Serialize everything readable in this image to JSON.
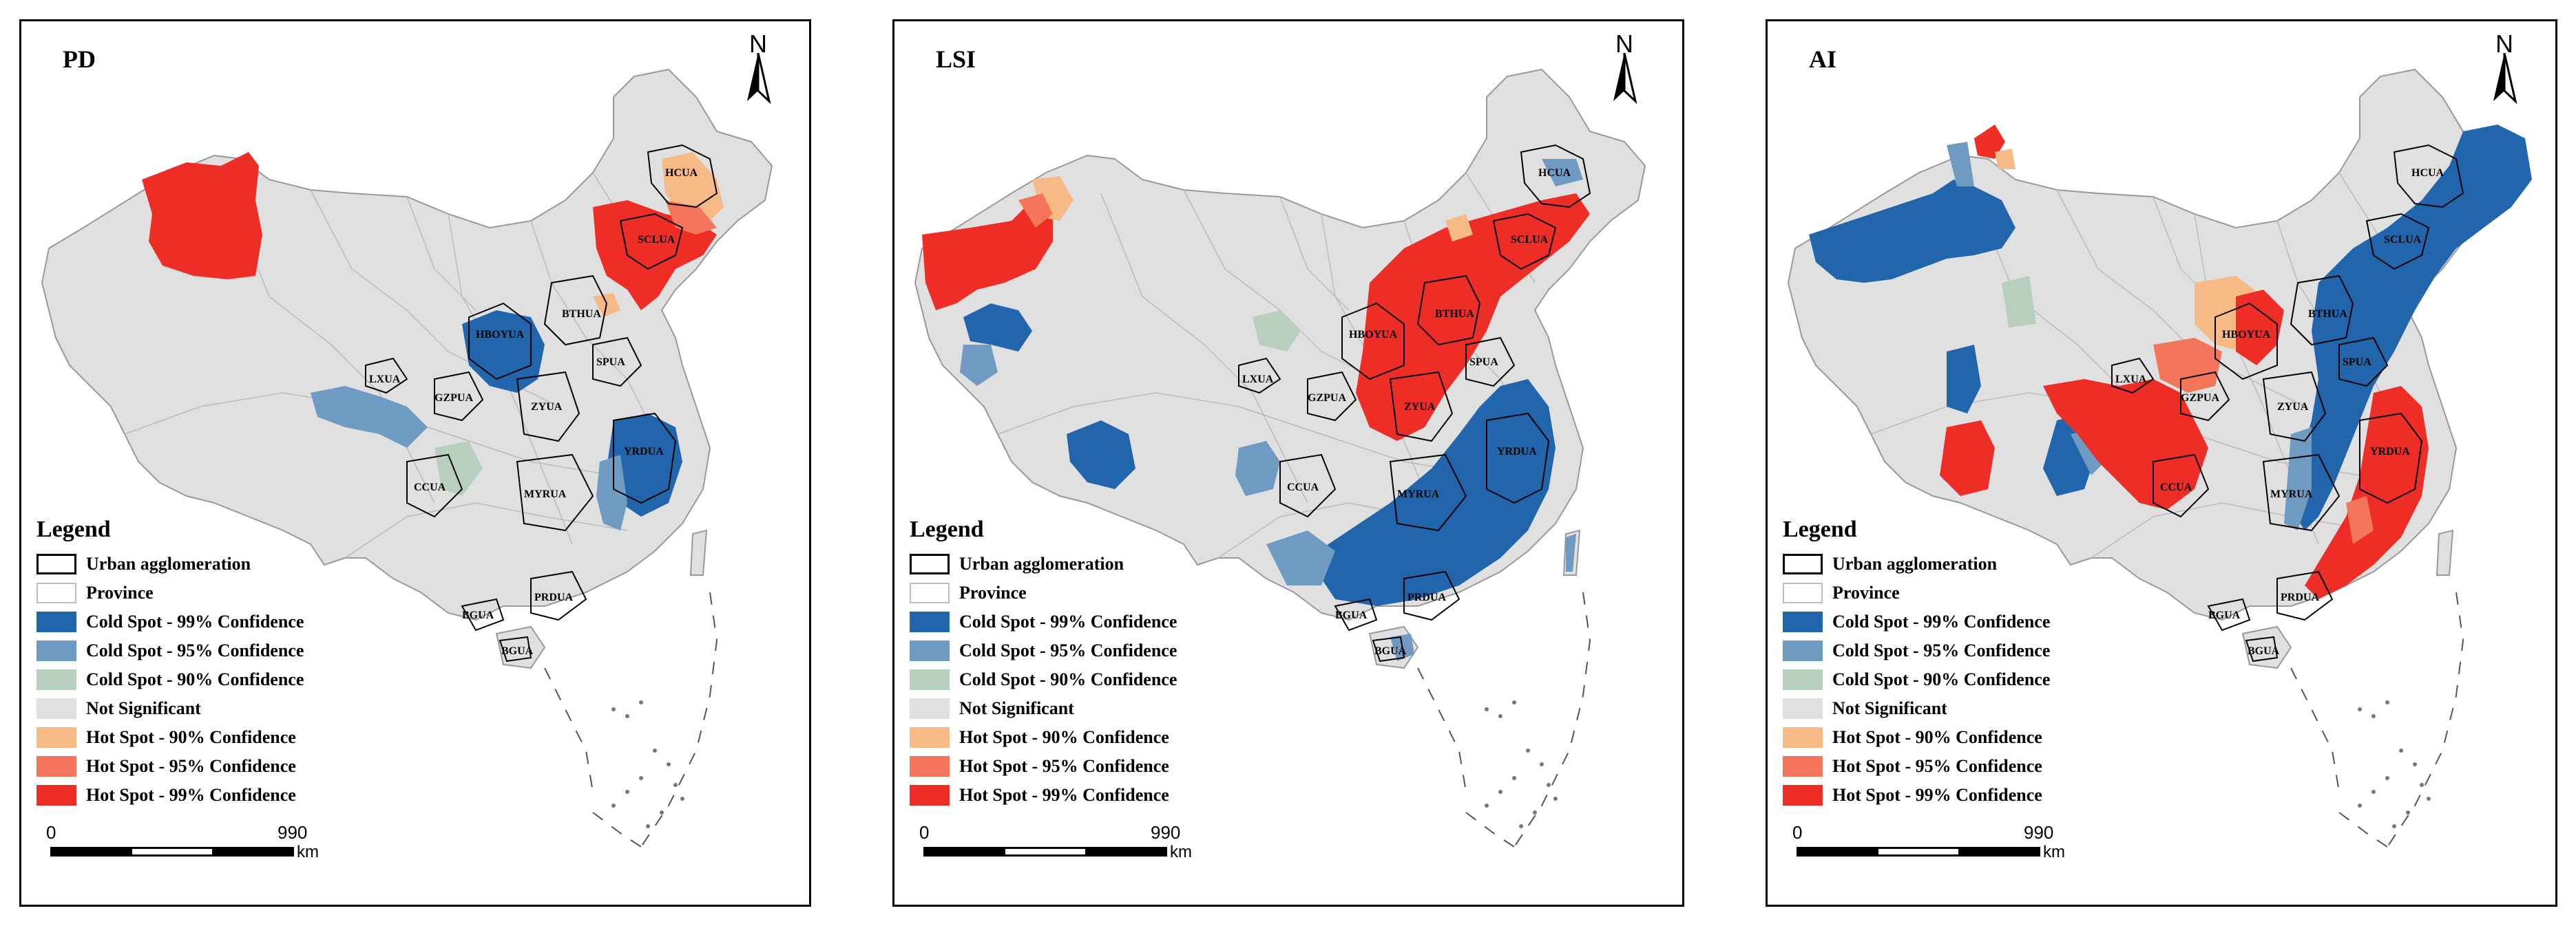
{
  "panels": [
    {
      "title": "PD"
    },
    {
      "title": "LSI"
    },
    {
      "title": "AI"
    }
  ],
  "north_label": "N",
  "legend": {
    "title": "Legend",
    "items": [
      {
        "label": "Urban agglomeration",
        "color": "#ffffff",
        "outline": "#000000"
      },
      {
        "label": "Province",
        "color": "#ffffff",
        "outline": "#bdbdbd"
      },
      {
        "label": "Cold Spot - 99% Confidence",
        "color": "#2166ac"
      },
      {
        "label": "Cold Spot - 95% Confidence",
        "color": "#6f9bc3"
      },
      {
        "label": "Cold Spot - 90% Confidence",
        "color": "#b8cfc0"
      },
      {
        "label": "Not Significant",
        "color": "#e0e0e0"
      },
      {
        "label": "Hot Spot - 90% Confidence",
        "color": "#f7b986"
      },
      {
        "label": "Hot Spot - 95% Confidence",
        "color": "#f4765a"
      },
      {
        "label": "Hot Spot - 99% Confidence",
        "color": "#ee2d27"
      }
    ]
  },
  "scale_bar": {
    "start": "0",
    "end": "990",
    "unit": "km"
  },
  "urban_agglomerations": [
    "HCUA",
    "SCLUA",
    "BTHUA",
    "HBOYUA",
    "SPUA",
    "LXUA",
    "GZPUA",
    "ZYUA",
    "YRDUA",
    "CCUA",
    "MYRUA",
    "PRDUA",
    "BGUA",
    "BGUA"
  ]
}
